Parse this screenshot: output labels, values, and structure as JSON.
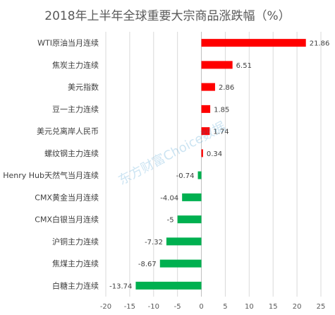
{
  "chart_data": {
    "type": "bar",
    "orientation": "horizontal",
    "title": "2018年上半年全球重要大宗商品涨跌幅（%）",
    "categories": [
      "WTI原油当月连续",
      "焦炭主力连续",
      "美元指数",
      "豆一主力连续",
      "美元兑离岸人民币",
      "螺纹钢主力连续",
      "Henry Hub天然气当月连续",
      "CMX黄金当月连续",
      "CMX白银当月连续",
      "沪铜主力连续",
      "焦煤主力连续",
      "白糖主力连续"
    ],
    "values": [
      21.86,
      6.51,
      2.86,
      1.85,
      1.74,
      0.34,
      -0.74,
      -4.04,
      -5,
      -7.32,
      -8.67,
      -13.74
    ],
    "value_labels": [
      "21.86",
      "6.51",
      "2.86",
      "1.85",
      "1.74",
      "0.34",
      "-0.74",
      "-4.04",
      "-5",
      "-7.32",
      "-8.67",
      "-13.74"
    ],
    "xlim": [
      -20,
      25
    ],
    "xticks": [
      "-20",
      "-15",
      "-10",
      "-5",
      "0",
      "5",
      "10",
      "15",
      "20",
      "25"
    ],
    "grid": true,
    "positive_color": "#ff0000",
    "negative_color": "#00b050",
    "watermark": "东方财富Choice数据"
  }
}
